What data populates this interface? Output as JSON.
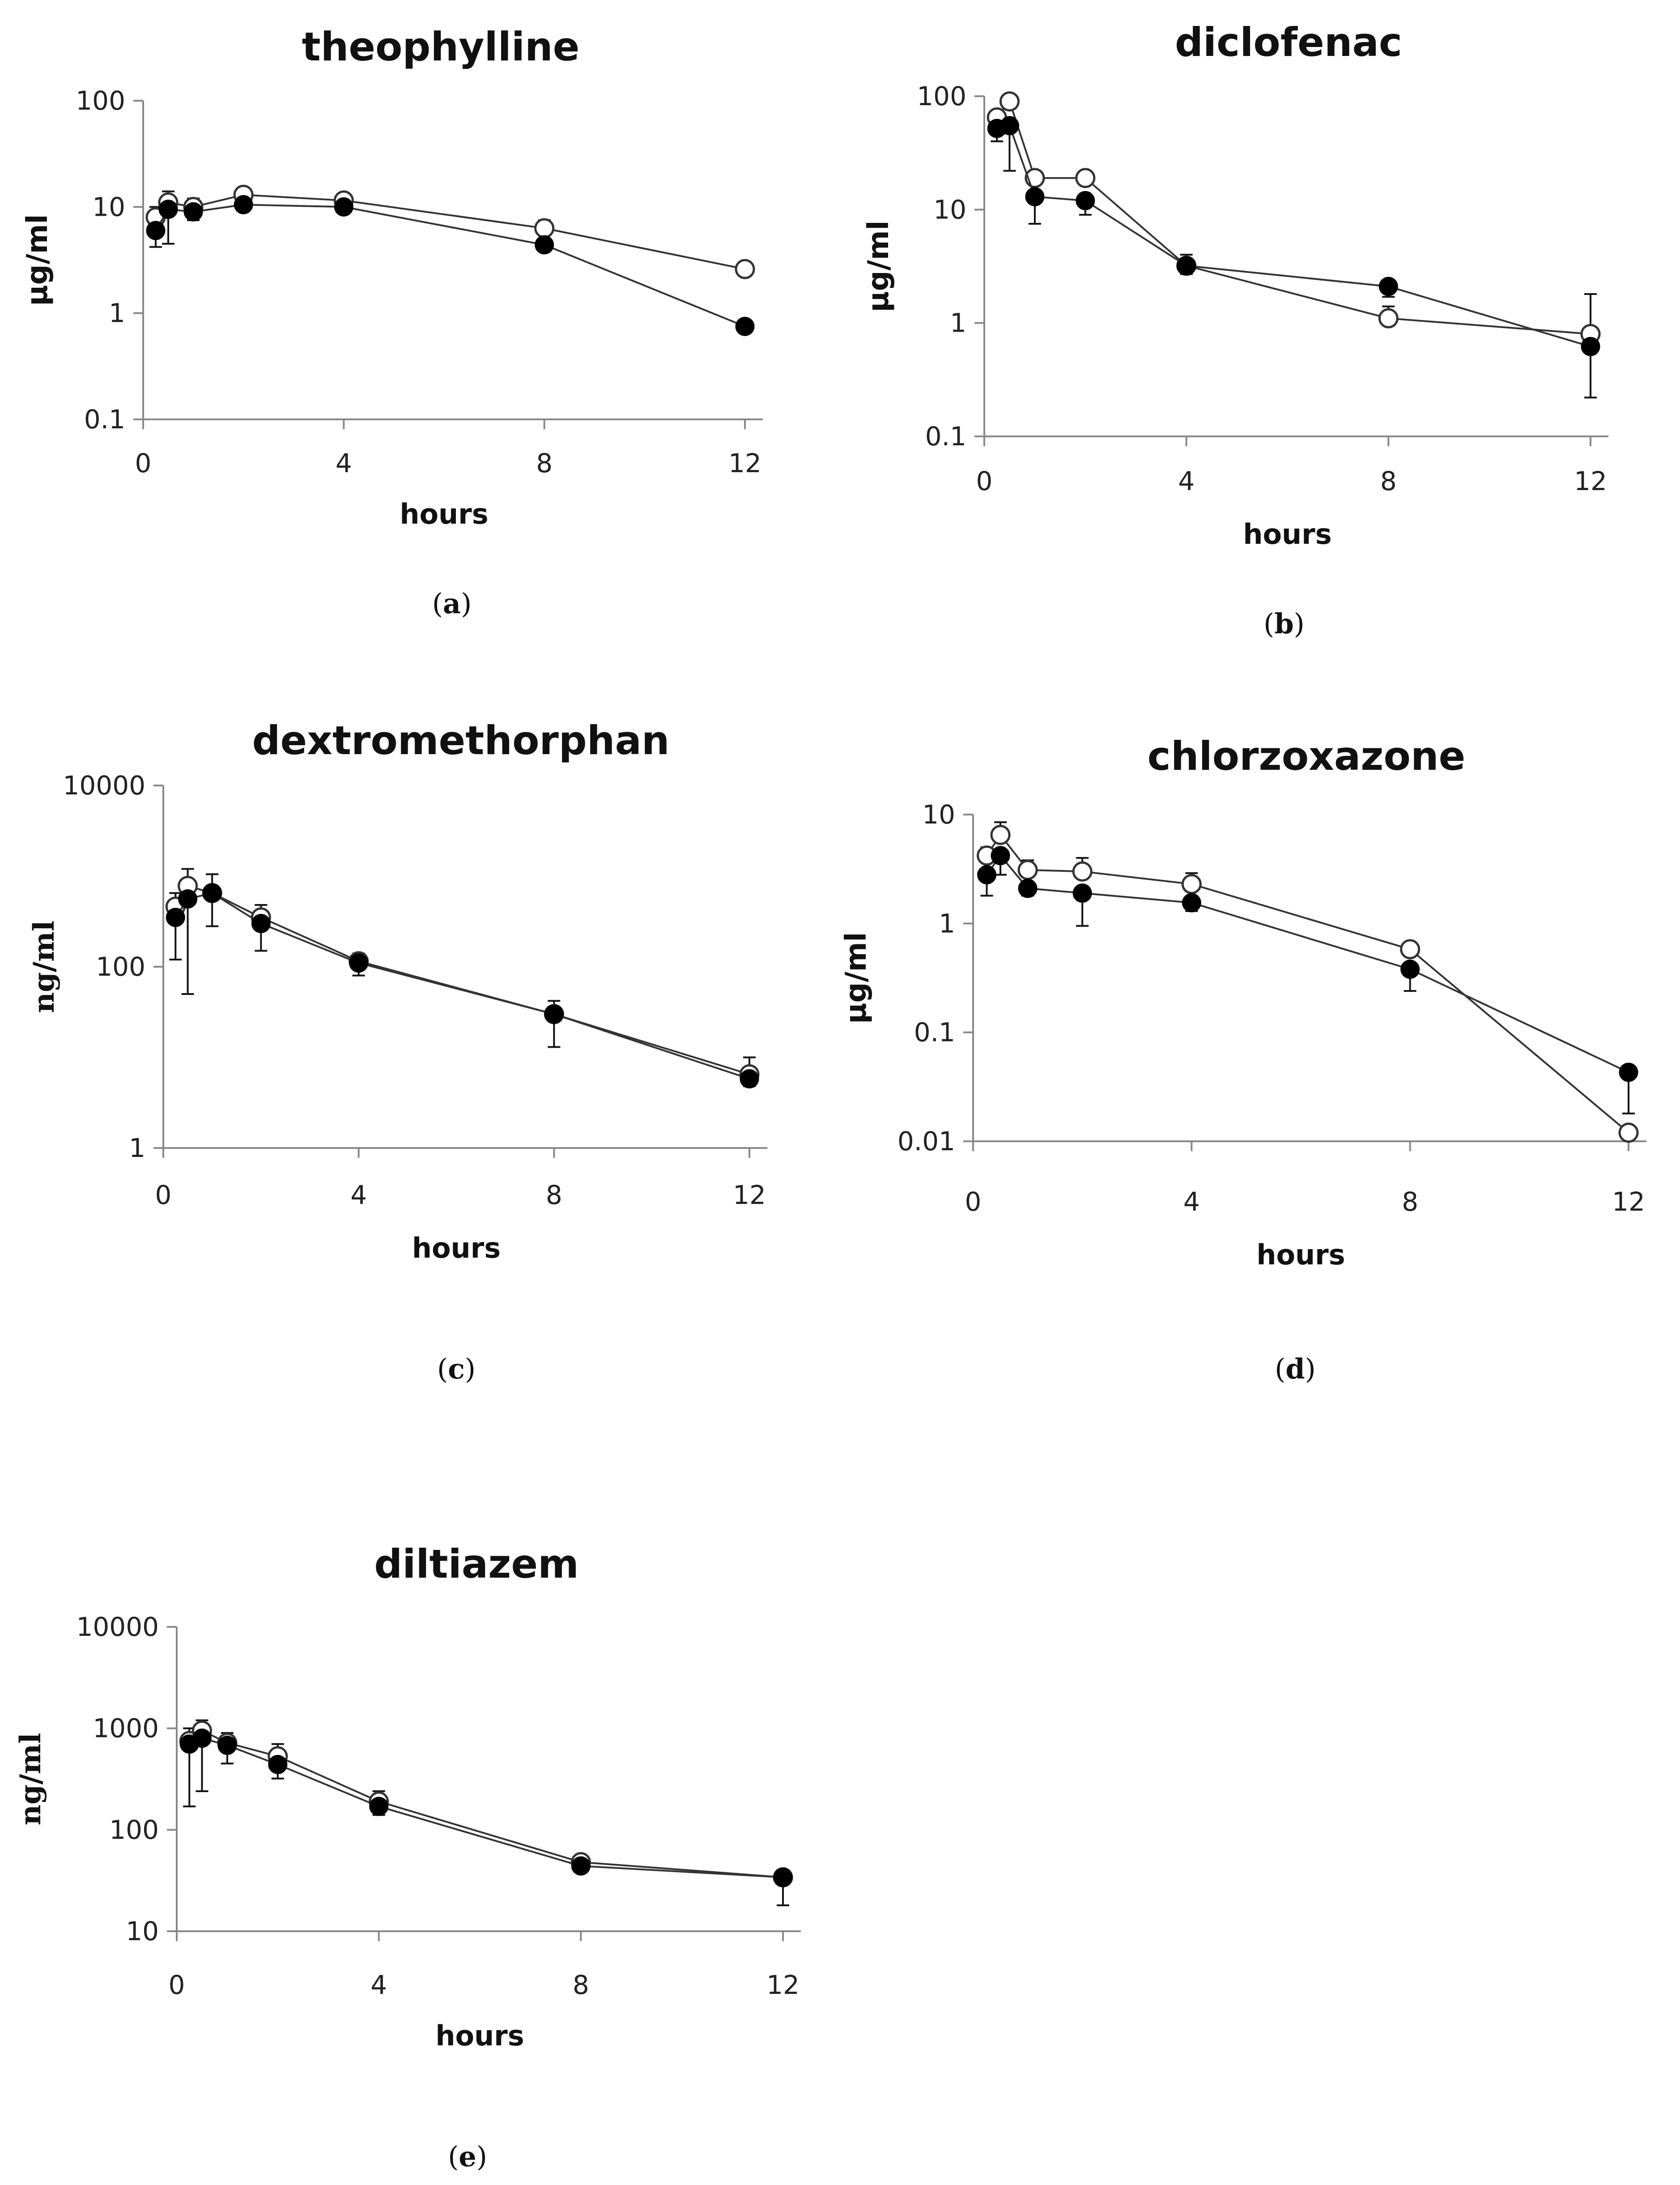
{
  "chart_data": [
    {
      "type": "line",
      "title": "theophylline",
      "caption_letter": "a",
      "xlabel": "hours",
      "ylabel": "μg/ml",
      "yscale": "log",
      "xlim": [
        0,
        12
      ],
      "ylim": [
        0.1,
        100
      ],
      "x_ticks": [
        0,
        4,
        8,
        12
      ],
      "y_ticks": [
        0.1,
        1,
        10,
        100
      ],
      "y_tick_labels": [
        "0.1",
        "1",
        "10",
        "100"
      ],
      "series": [
        {
          "name": "open circles",
          "marker": "open",
          "x": [
            0.25,
            0.5,
            1,
            2,
            4,
            8,
            12
          ],
          "values": [
            8,
            11,
            10,
            13,
            11.5,
            6.3,
            2.6
          ],
          "err_up": [
            10,
            14,
            12,
            15,
            13,
            7.5,
            3.0
          ],
          "err_down": [
            null,
            null,
            null,
            null,
            null,
            null,
            null
          ]
        },
        {
          "name": "filled circles",
          "marker": "filled",
          "x": [
            0.25,
            0.5,
            1,
            2,
            4,
            8,
            12
          ],
          "values": [
            6,
            9.5,
            9,
            10.5,
            10,
            4.4,
            0.75
          ],
          "err_up": [
            null,
            null,
            null,
            null,
            null,
            null,
            null
          ],
          "err_down": [
            4.2,
            4.5,
            7.5,
            9.5,
            9,
            3.8,
            0.7
          ]
        }
      ]
    },
    {
      "type": "line",
      "title": "diclofenac",
      "caption_letter": "b",
      "xlabel": "hours",
      "ylabel": "μg/ml",
      "yscale": "log",
      "xlim": [
        0,
        12
      ],
      "ylim": [
        0.1,
        100
      ],
      "x_ticks": [
        0,
        4,
        8,
        12
      ],
      "y_ticks": [
        0.1,
        1,
        10,
        100
      ],
      "y_tick_labels": [
        "0.1",
        "1",
        "10",
        "100"
      ],
      "series": [
        {
          "name": "open circles",
          "marker": "open",
          "x": [
            0.25,
            0.5,
            1,
            2,
            4,
            8,
            12
          ],
          "values": [
            65,
            90,
            19,
            19,
            3.2,
            1.1,
            0.8
          ],
          "err_up": [
            null,
            null,
            null,
            null,
            4.0,
            1.4,
            1.8
          ],
          "err_down": [
            null,
            null,
            null,
            null,
            null,
            null,
            null
          ]
        },
        {
          "name": "filled circles",
          "marker": "filled",
          "x": [
            0.25,
            0.5,
            1,
            2,
            4,
            8,
            12
          ],
          "values": [
            52,
            55,
            13,
            12,
            3.2,
            2.1,
            0.62
          ],
          "err_up": [
            null,
            null,
            null,
            null,
            null,
            null,
            null
          ],
          "err_down": [
            40,
            22,
            7.5,
            9,
            2.7,
            1.7,
            0.22
          ]
        }
      ]
    },
    {
      "type": "line",
      "title": "dextromethorphan",
      "caption_letter": "c",
      "xlabel": "hours",
      "ylabel": "ng/ml",
      "yscale": "log",
      "xlim": [
        0,
        12
      ],
      "ylim": [
        1,
        10000
      ],
      "x_ticks": [
        0,
        4,
        8,
        12
      ],
      "y_ticks": [
        1,
        100,
        10000
      ],
      "y_tick_labels": [
        "1",
        "100",
        "10000"
      ],
      "series": [
        {
          "name": "open circles",
          "marker": "open",
          "x": [
            0.25,
            0.5,
            1,
            2,
            4,
            8,
            12
          ],
          "values": [
            460,
            780,
            650,
            350,
            115,
            30,
            6.5
          ],
          "err_up": [
            650,
            1200,
            1050,
            480,
            140,
            42,
            10
          ],
          "err_down": [
            null,
            null,
            null,
            null,
            null,
            null,
            null
          ]
        },
        {
          "name": "filled circles",
          "marker": "filled",
          "x": [
            0.25,
            0.5,
            1,
            2,
            4,
            8,
            12
          ],
          "values": [
            350,
            560,
            650,
            300,
            110,
            30,
            5.8
          ],
          "err_up": [
            null,
            null,
            null,
            null,
            null,
            null,
            null
          ],
          "err_down": [
            120,
            50,
            280,
            150,
            80,
            13,
            4.8
          ]
        }
      ]
    },
    {
      "type": "line",
      "title": "chlorzoxazone",
      "caption_letter": "d",
      "xlabel": "hours",
      "ylabel": "μg/ml",
      "yscale": "log",
      "xlim": [
        0,
        12
      ],
      "ylim": [
        0.01,
        10
      ],
      "x_ticks": [
        0,
        4,
        8,
        12
      ],
      "y_ticks": [
        0.01,
        0.1,
        1,
        10
      ],
      "y_tick_labels": [
        "0.01",
        "0.1",
        "1",
        "10"
      ],
      "series": [
        {
          "name": "open circles",
          "marker": "open",
          "x": [
            0.25,
            0.5,
            1,
            2,
            4,
            8,
            12
          ],
          "values": [
            4.2,
            6.5,
            3.1,
            3.0,
            2.3,
            0.58,
            0.012
          ],
          "err_up": [
            5.0,
            8.5,
            3.8,
            4.0,
            2.9,
            0.65,
            null
          ],
          "err_down": [
            null,
            null,
            null,
            null,
            null,
            null,
            null
          ]
        },
        {
          "name": "filled circles",
          "marker": "filled",
          "x": [
            0.25,
            0.5,
            1,
            2,
            4,
            8,
            12
          ],
          "values": [
            2.8,
            4.2,
            2.1,
            1.9,
            1.55,
            0.38,
            0.043
          ],
          "err_up": [
            null,
            null,
            null,
            null,
            null,
            null,
            null
          ],
          "err_down": [
            1.8,
            2.8,
            1.8,
            0.95,
            1.3,
            0.24,
            0.018
          ]
        }
      ]
    },
    {
      "type": "line",
      "title": "diltiazem",
      "caption_letter": "e",
      "xlabel": "hours",
      "ylabel": "ng/ml",
      "yscale": "log",
      "xlim": [
        0,
        12
      ],
      "ylim": [
        10,
        10000
      ],
      "x_ticks": [
        0,
        4,
        8,
        12
      ],
      "y_ticks": [
        10,
        100,
        1000,
        10000
      ],
      "y_tick_labels": [
        "10",
        "100",
        "1000",
        "10000"
      ],
      "series": [
        {
          "name": "open circles",
          "marker": "open",
          "x": [
            0.25,
            0.5,
            1,
            2,
            4,
            8,
            12
          ],
          "values": [
            750,
            950,
            720,
            530,
            190,
            48,
            34
          ],
          "err_up": [
            1000,
            1200,
            900,
            700,
            240,
            55,
            null
          ],
          "err_down": [
            null,
            null,
            null,
            null,
            null,
            null,
            null
          ]
        },
        {
          "name": "filled circles",
          "marker": "filled",
          "x": [
            0.25,
            0.5,
            1,
            2,
            4,
            8,
            12
          ],
          "values": [
            700,
            800,
            680,
            440,
            170,
            44,
            34
          ],
          "err_up": [
            null,
            null,
            null,
            null,
            null,
            null,
            null
          ],
          "err_down": [
            170,
            240,
            450,
            320,
            140,
            38,
            18
          ]
        }
      ]
    }
  ]
}
